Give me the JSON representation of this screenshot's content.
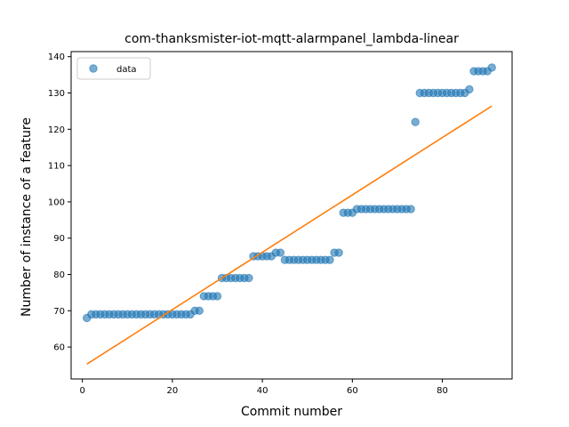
{
  "chart_data": {
    "type": "scatter",
    "title": "com-thanksmister-iot-mqtt-alarmpanel_lambda-linear",
    "xlabel": "Commit number",
    "ylabel": "Number of instance of a feature",
    "xlim": [
      -2.5,
      95.5
    ],
    "ylim": [
      51.2,
      141.4
    ],
    "xticks": [
      0,
      20,
      40,
      60,
      80
    ],
    "yticks": [
      60,
      70,
      80,
      90,
      100,
      110,
      120,
      130,
      140
    ],
    "grid": false,
    "legend": {
      "position": "top-left",
      "entries": [
        "data"
      ]
    },
    "series": [
      {
        "name": "data",
        "kind": "scatter",
        "color": "#1f77b4",
        "x": [
          1,
          2,
          3,
          4,
          5,
          6,
          7,
          8,
          9,
          10,
          11,
          12,
          13,
          14,
          15,
          16,
          17,
          18,
          19,
          20,
          21,
          22,
          23,
          24,
          25,
          26,
          27,
          28,
          29,
          30,
          31,
          32,
          33,
          34,
          35,
          36,
          37,
          38,
          39,
          40,
          41,
          42,
          43,
          44,
          45,
          46,
          47,
          48,
          49,
          50,
          51,
          52,
          53,
          54,
          55,
          56,
          57,
          58,
          59,
          60,
          61,
          62,
          63,
          64,
          65,
          66,
          67,
          68,
          69,
          70,
          71,
          72,
          73,
          74,
          75,
          76,
          77,
          78,
          79,
          80,
          81,
          82,
          83,
          84,
          85,
          86,
          87,
          88,
          89,
          90,
          91
        ],
        "y": [
          68,
          69,
          69,
          69,
          69,
          69,
          69,
          69,
          69,
          69,
          69,
          69,
          69,
          69,
          69,
          69,
          69,
          69,
          69,
          69,
          69,
          69,
          69,
          69,
          70,
          70,
          74,
          74,
          74,
          74,
          79,
          79,
          79,
          79,
          79,
          79,
          79,
          85,
          85,
          85,
          85,
          85,
          86,
          86,
          84,
          84,
          84,
          84,
          84,
          84,
          84,
          84,
          84,
          84,
          84,
          86,
          86,
          97,
          97,
          97,
          98,
          98,
          98,
          98,
          98,
          98,
          98,
          98,
          98,
          98,
          98,
          98,
          98,
          122,
          130,
          130,
          130,
          130,
          130,
          130,
          130,
          130,
          130,
          130,
          130,
          131,
          136,
          136,
          136,
          136,
          137
        ]
      },
      {
        "name": "",
        "kind": "line",
        "color": "#ff7f0e",
        "x": [
          1,
          91
        ],
        "y": [
          55.3,
          126.4
        ]
      }
    ]
  }
}
